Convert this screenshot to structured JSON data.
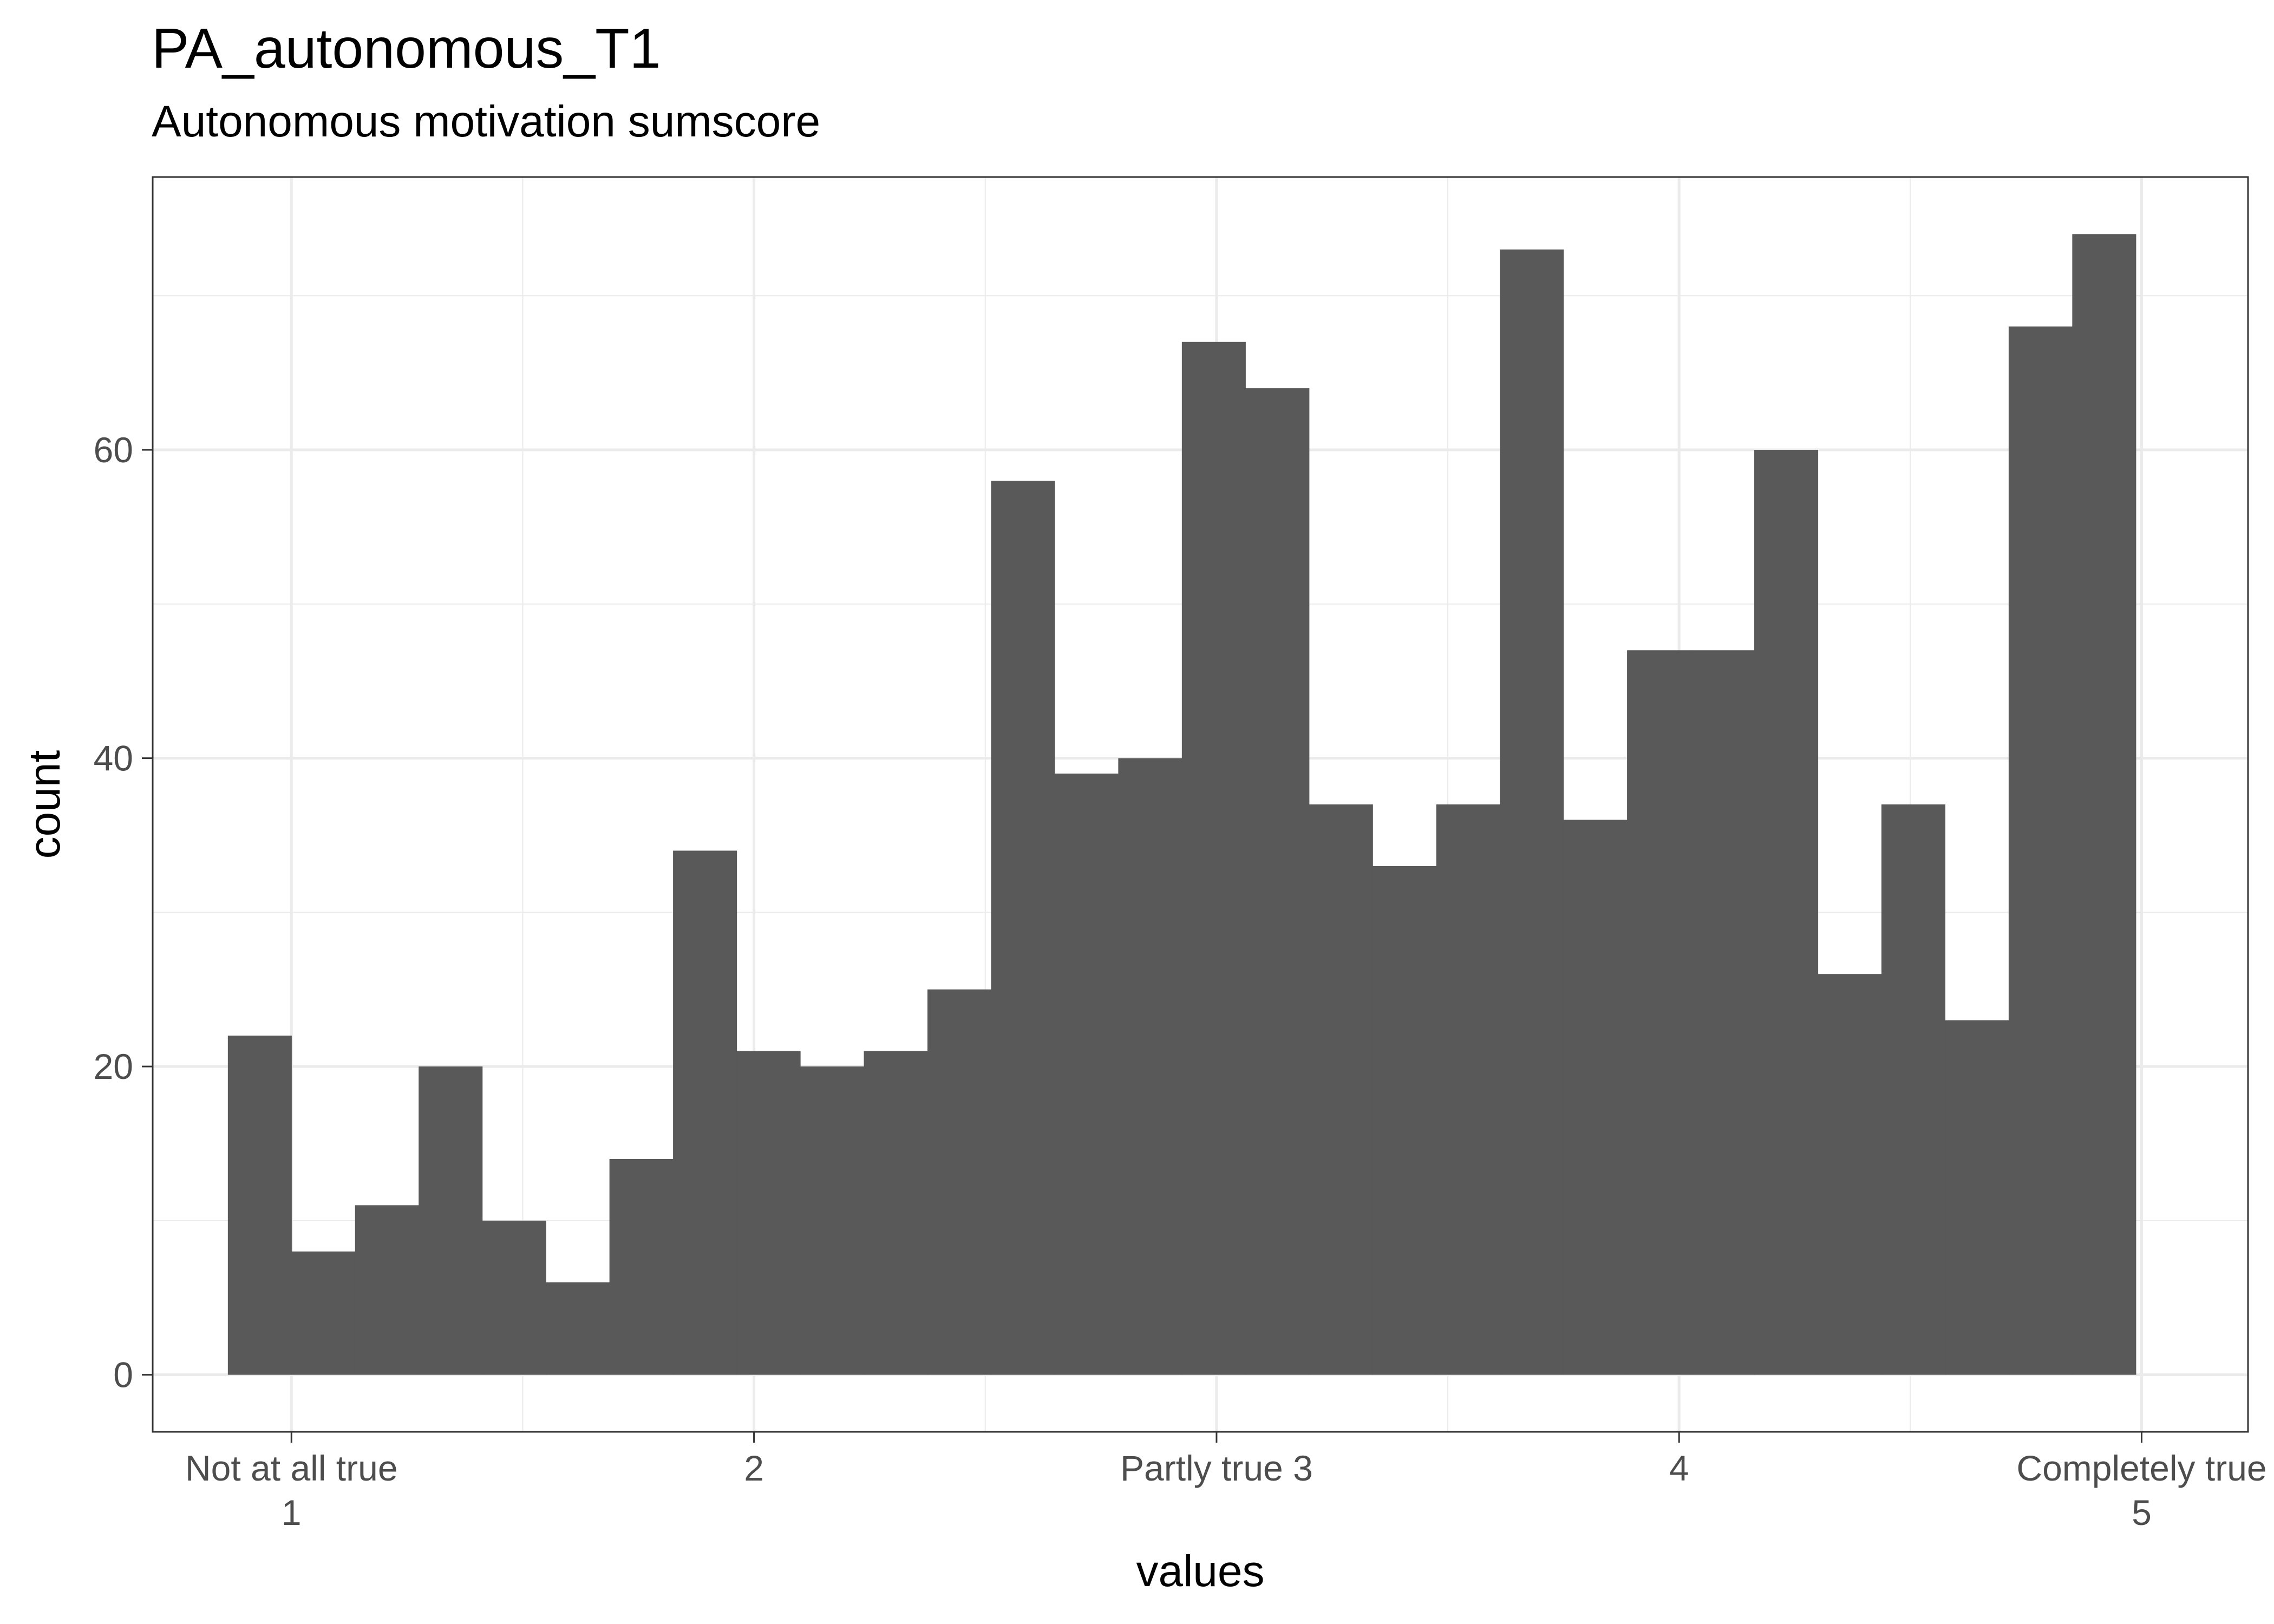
{
  "chart_data": {
    "type": "bar",
    "title": "PA_autonomous_T1",
    "subtitle": "Autonomous motivation sumscore",
    "xlabel": "values",
    "ylabel": "count",
    "xlim": [
      0.7,
      5.23
    ],
    "ylim": [
      -3.7,
      77.7
    ],
    "x_ticks": [
      {
        "value": 1,
        "line1": "Not at all true",
        "line2": "1"
      },
      {
        "value": 2,
        "line1": "2",
        "line2": ""
      },
      {
        "value": 3,
        "line1": "Partly true 3",
        "line2": ""
      },
      {
        "value": 4,
        "line1": "4",
        "line2": ""
      },
      {
        "value": 5,
        "line1": "Completely true",
        "line2": "5"
      }
    ],
    "y_ticks": [
      0,
      20,
      40,
      60
    ],
    "bin_start": 0.8625,
    "bin_width": 0.1375,
    "values": [
      22,
      8,
      11,
      20,
      10,
      6,
      14,
      34,
      21,
      20,
      21,
      25,
      58,
      39,
      40,
      67,
      64,
      37,
      33,
      37,
      73,
      36,
      47,
      47,
      60,
      26,
      37,
      23,
      68,
      74
    ],
    "bar_color": "#595959",
    "grid": true,
    "legend": "none"
  }
}
